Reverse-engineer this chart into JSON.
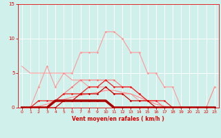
{
  "x": [
    0,
    1,
    2,
    3,
    4,
    5,
    6,
    7,
    8,
    9,
    10,
    11,
    12,
    13,
    14,
    15,
    16,
    17,
    18,
    19,
    20,
    21,
    22,
    23
  ],
  "bg_color": "#cff0eb",
  "grid_color": "#ffffff",
  "tick_color": "#dd0000",
  "label_color": "#dd0000",
  "xlabel": "Vent moyen/en rafales ( km/h )",
  "xlim": [
    -0.5,
    23.5
  ],
  "ylim": [
    0,
    15
  ],
  "yticks": [
    0,
    5,
    10,
    15
  ],
  "xticks": [
    0,
    1,
    2,
    3,
    4,
    5,
    6,
    7,
    8,
    9,
    10,
    11,
    12,
    13,
    14,
    15,
    16,
    17,
    18,
    19,
    20,
    21,
    22,
    23
  ],
  "series": [
    {
      "y": [
        0,
        0,
        3,
        6,
        3,
        5,
        5,
        8,
        8,
        8,
        11,
        11,
        10,
        8,
        8,
        5,
        5,
        3,
        3,
        0,
        0,
        0,
        0,
        3
      ],
      "color": "#ff9999",
      "lw": 0.8,
      "marker": "D",
      "ms": 1.8,
      "zorder": 2
    },
    {
      "y": [
        6,
        5,
        5,
        5,
        5,
        5,
        4,
        4,
        3,
        3,
        3,
        2,
        2,
        2,
        1,
        1,
        1,
        0,
        0,
        0,
        0,
        0,
        0,
        3
      ],
      "color": "#ff9999",
      "lw": 0.8,
      "marker": null,
      "ms": 0,
      "zorder": 2
    },
    {
      "y": [
        0,
        0,
        0,
        0,
        1,
        2,
        3,
        4,
        4,
        4,
        4,
        4,
        3,
        3,
        2,
        1,
        1,
        0,
        0,
        0,
        0,
        0,
        0,
        0
      ],
      "color": "#ff7777",
      "lw": 0.8,
      "marker": "D",
      "ms": 1.8,
      "zorder": 2
    },
    {
      "y": [
        0,
        0,
        1,
        1,
        1,
        2,
        2,
        2,
        3,
        3,
        4,
        3,
        3,
        3,
        2,
        1,
        1,
        1,
        0,
        0,
        0,
        0,
        0,
        0
      ],
      "color": "#ee2222",
      "lw": 0.9,
      "marker": "D",
      "ms": 1.8,
      "zorder": 3
    },
    {
      "y": [
        0,
        0,
        0,
        0,
        0,
        1,
        1,
        2,
        2,
        2,
        3,
        2,
        2,
        1,
        1,
        1,
        0,
        0,
        0,
        0,
        0,
        0,
        0,
        0
      ],
      "color": "#cc0000",
      "lw": 0.9,
      "marker": "D",
      "ms": 1.8,
      "zorder": 3
    },
    {
      "y": [
        0,
        0,
        0,
        0,
        1,
        1,
        1,
        1,
        1,
        1,
        1,
        0,
        0,
        0,
        0,
        0,
        0,
        0,
        0,
        0,
        0,
        0,
        0,
        0
      ],
      "color": "#aa0000",
      "lw": 2.5,
      "marker": "D",
      "ms": 1.8,
      "zorder": 4
    },
    {
      "y": [
        0,
        0,
        0.2,
        0.5,
        1,
        1.2,
        1.5,
        1.8,
        2,
        2.2,
        2.5,
        2.5,
        2.2,
        2,
        1.5,
        1,
        0.5,
        0.2,
        0,
        0,
        0,
        0,
        0,
        0
      ],
      "color": "#ff8888",
      "lw": 0.8,
      "marker": null,
      "ms": 0,
      "zorder": 2
    }
  ]
}
